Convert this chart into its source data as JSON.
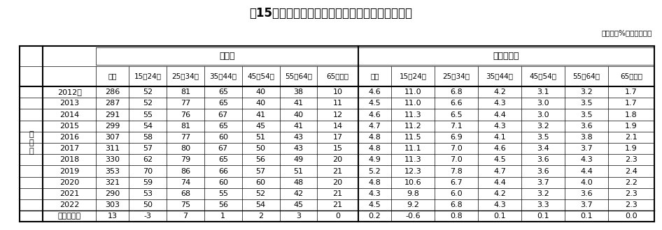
{
  "title": "表15　年齢階級別転職者数及び転職者比率の推移",
  "unit_label": "（万人、%、ポイント）",
  "group1_label": "転職者",
  "group2_label": "転職者比率",
  "side_label": "男\n女\n計",
  "years": [
    "2012年",
    "2013",
    "2014",
    "2015",
    "2016",
    "2017",
    "2018",
    "2019",
    "2020",
    "2021",
    "2022",
    "対前年増減"
  ],
  "col_headers": [
    "総数",
    "15～24歳",
    "25～34歳",
    "35～44歳",
    "45～54歳",
    "55～64歳",
    "65歳以上",
    "総数",
    "15～24歳",
    "25～34歳",
    "35～44歳",
    "45～54歳",
    "55～64歳",
    "65歳以上"
  ],
  "data_str": [
    [
      "286",
      "52",
      "81",
      "65",
      "40",
      "38",
      "10",
      "4.6",
      "11.0",
      "6.8",
      "4.2",
      "3.1",
      "3.2",
      "1.7"
    ],
    [
      "287",
      "52",
      "77",
      "65",
      "40",
      "41",
      "11",
      "4.5",
      "11.0",
      "6.6",
      "4.3",
      "3.0",
      "3.5",
      "1.7"
    ],
    [
      "291",
      "55",
      "76",
      "67",
      "41",
      "40",
      "12",
      "4.6",
      "11.3",
      "6.5",
      "4.4",
      "3.0",
      "3.5",
      "1.8"
    ],
    [
      "299",
      "54",
      "81",
      "65",
      "45",
      "41",
      "14",
      "4.7",
      "11.2",
      "7.1",
      "4.3",
      "3.2",
      "3.6",
      "1.9"
    ],
    [
      "307",
      "58",
      "77",
      "60",
      "51",
      "43",
      "17",
      "4.8",
      "11.5",
      "6.9",
      "4.1",
      "3.5",
      "3.8",
      "2.1"
    ],
    [
      "311",
      "57",
      "80",
      "67",
      "50",
      "43",
      "15",
      "4.8",
      "11.1",
      "7.0",
      "4.6",
      "3.4",
      "3.7",
      "1.9"
    ],
    [
      "330",
      "62",
      "79",
      "65",
      "56",
      "49",
      "20",
      "4.9",
      "11.3",
      "7.0",
      "4.5",
      "3.6",
      "4.3",
      "2.3"
    ],
    [
      "353",
      "70",
      "86",
      "66",
      "57",
      "51",
      "21",
      "5.2",
      "12.3",
      "7.8",
      "4.7",
      "3.6",
      "4.4",
      "2.4"
    ],
    [
      "321",
      "59",
      "74",
      "60",
      "60",
      "48",
      "20",
      "4.8",
      "10.6",
      "6.7",
      "4.4",
      "3.7",
      "4.0",
      "2.2"
    ],
    [
      "290",
      "53",
      "68",
      "55",
      "52",
      "42",
      "21",
      "4.3",
      "9.8",
      "6.0",
      "4.2",
      "3.2",
      "3.6",
      "2.3"
    ],
    [
      "303",
      "50",
      "75",
      "56",
      "54",
      "45",
      "21",
      "4.5",
      "9.2",
      "6.8",
      "4.3",
      "3.3",
      "3.7",
      "2.3"
    ],
    [
      "13",
      "-3",
      "7",
      "1",
      "2",
      "3",
      "0",
      "0.2",
      "-0.6",
      "0.8",
      "0.1",
      "0.1",
      "0.1",
      "0.0"
    ]
  ],
  "title_fontsize": 12,
  "unit_fontsize": 7.5,
  "data_fontsize": 8.0,
  "header_fontsize": 7.5,
  "group_fontsize": 9.0,
  "TL": 0.03,
  "TR": 0.988,
  "TT": 0.8,
  "TB": 0.035,
  "r_gh": 0.115,
  "r_ch": 0.115,
  "cw_ratios": [
    0.028,
    0.065,
    0.04,
    0.046,
    0.046,
    0.046,
    0.046,
    0.046,
    0.05,
    0.04,
    0.053,
    0.053,
    0.053,
    0.053,
    0.053,
    0.056
  ],
  "thick": 1.5,
  "thin": 0.5,
  "med": 1.0
}
